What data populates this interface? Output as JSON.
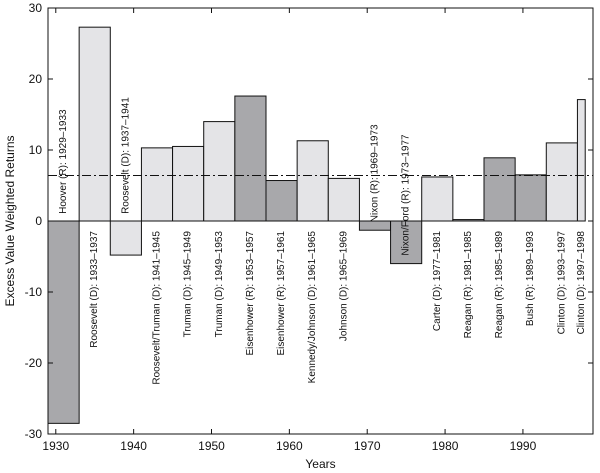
{
  "chart_data": {
    "type": "bar",
    "title": "",
    "xlabel": "Years",
    "ylabel": "Excess Value Weighted Returns",
    "xlim": [
      1929,
      1999
    ],
    "ylim": [
      -30,
      30
    ],
    "xticks": [
      1930,
      1940,
      1950,
      1960,
      1970,
      1980,
      1990
    ],
    "yticks": [
      -30,
      -20,
      -10,
      0,
      10,
      20,
      30
    ],
    "reference_line": {
      "style": "dash-dot",
      "value": 6.4
    },
    "colors": {
      "republican": "#a8a8ab",
      "democrat": "#e4e4e7",
      "edge": "#111111"
    },
    "bars": [
      {
        "label": "Hoover (R): 1929–1933",
        "start": 1929,
        "end": 1933,
        "value": -28.5,
        "party": "R"
      },
      {
        "label": "Roosevelt (D): 1933–1937",
        "start": 1933,
        "end": 1937,
        "value": 27.3,
        "party": "D"
      },
      {
        "label": "Roosevelt (D): 1937–1941",
        "start": 1937,
        "end": 1941,
        "value": -4.8,
        "party": "D"
      },
      {
        "label": "Roosevelt/Truman (D): 1941–1945",
        "start": 1941,
        "end": 1945,
        "value": 10.3,
        "party": "D"
      },
      {
        "label": "Truman (D): 1945–1949",
        "start": 1945,
        "end": 1949,
        "value": 10.5,
        "party": "D"
      },
      {
        "label": "Truman (D): 1949–1953",
        "start": 1949,
        "end": 1953,
        "value": 14.0,
        "party": "D"
      },
      {
        "label": "Eisenhower (R): 1953–1957",
        "start": 1953,
        "end": 1957,
        "value": 17.6,
        "party": "R"
      },
      {
        "label": "Eisenhower (R): 1957–1961",
        "start": 1957,
        "end": 1961,
        "value": 5.7,
        "party": "R"
      },
      {
        "label": "Kennedy/Johnson (D): 1961–1965",
        "start": 1961,
        "end": 1965,
        "value": 11.3,
        "party": "D"
      },
      {
        "label": "Johnson (D): 1965–1969",
        "start": 1965,
        "end": 1969,
        "value": 6.0,
        "party": "D"
      },
      {
        "label": "Nixon (R): 1969–1973",
        "start": 1969,
        "end": 1973,
        "value": -1.3,
        "party": "R"
      },
      {
        "label": "Nixon/Ford (R): 1973–1977",
        "start": 1973,
        "end": 1977,
        "value": -6.0,
        "party": "R"
      },
      {
        "label": "Carter (D): 1977–1981",
        "start": 1977,
        "end": 1981,
        "value": 6.2,
        "party": "D"
      },
      {
        "label": "Reagan (R): 1981–1985",
        "start": 1981,
        "end": 1985,
        "value": 0.2,
        "party": "R"
      },
      {
        "label": "Reagan (R): 1985–1989",
        "start": 1985,
        "end": 1989,
        "value": 8.9,
        "party": "R"
      },
      {
        "label": "Bush (R): 1989–1993",
        "start": 1989,
        "end": 1993,
        "value": 6.5,
        "party": "R"
      },
      {
        "label": "Clinton (D): 1993–1997",
        "start": 1993,
        "end": 1997,
        "value": 11.0,
        "party": "D"
      },
      {
        "label": "Clinton (D): 1997–1998",
        "start": 1997,
        "end": 1998,
        "value": 17.1,
        "party": "D"
      }
    ]
  }
}
